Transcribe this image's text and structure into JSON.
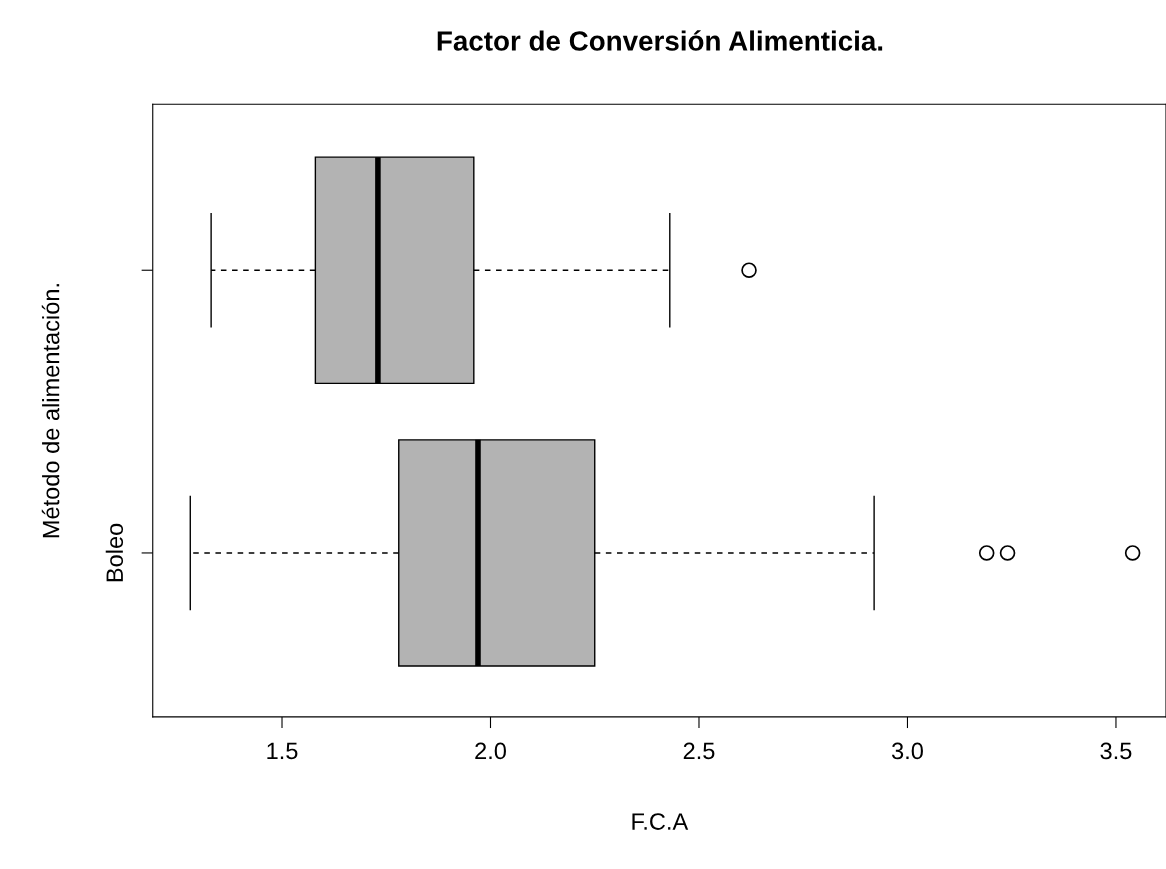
{
  "chart_data": {
    "type": "box",
    "orientation": "horizontal",
    "title": "Factor de Conversión Alimenticia.",
    "xlabel": "F.C.A",
    "ylabel": "Método de alimentación.",
    "categories": [
      null,
      "Boleo"
    ],
    "boxes": [
      {
        "low": 1.33,
        "q1": 1.58,
        "median": 1.73,
        "q3": 1.96,
        "high": 2.43,
        "outliers": [
          2.62
        ]
      },
      {
        "low": 1.28,
        "q1": 1.78,
        "median": 1.97,
        "q3": 2.25,
        "high": 2.92,
        "outliers": [
          3.19,
          3.24,
          3.54
        ]
      }
    ],
    "color": "#b3b3b3",
    "xlim": [
      1.19,
      3.62
    ],
    "xticks": [
      {
        "value": 1.5,
        "label": "1.5"
      },
      {
        "value": 2.0,
        "label": "2.0"
      },
      {
        "value": 2.5,
        "label": "2.5"
      },
      {
        "value": 3.0,
        "label": "3.0"
      },
      {
        "value": 3.5,
        "label": "3.5"
      }
    ],
    "grid": false
  }
}
